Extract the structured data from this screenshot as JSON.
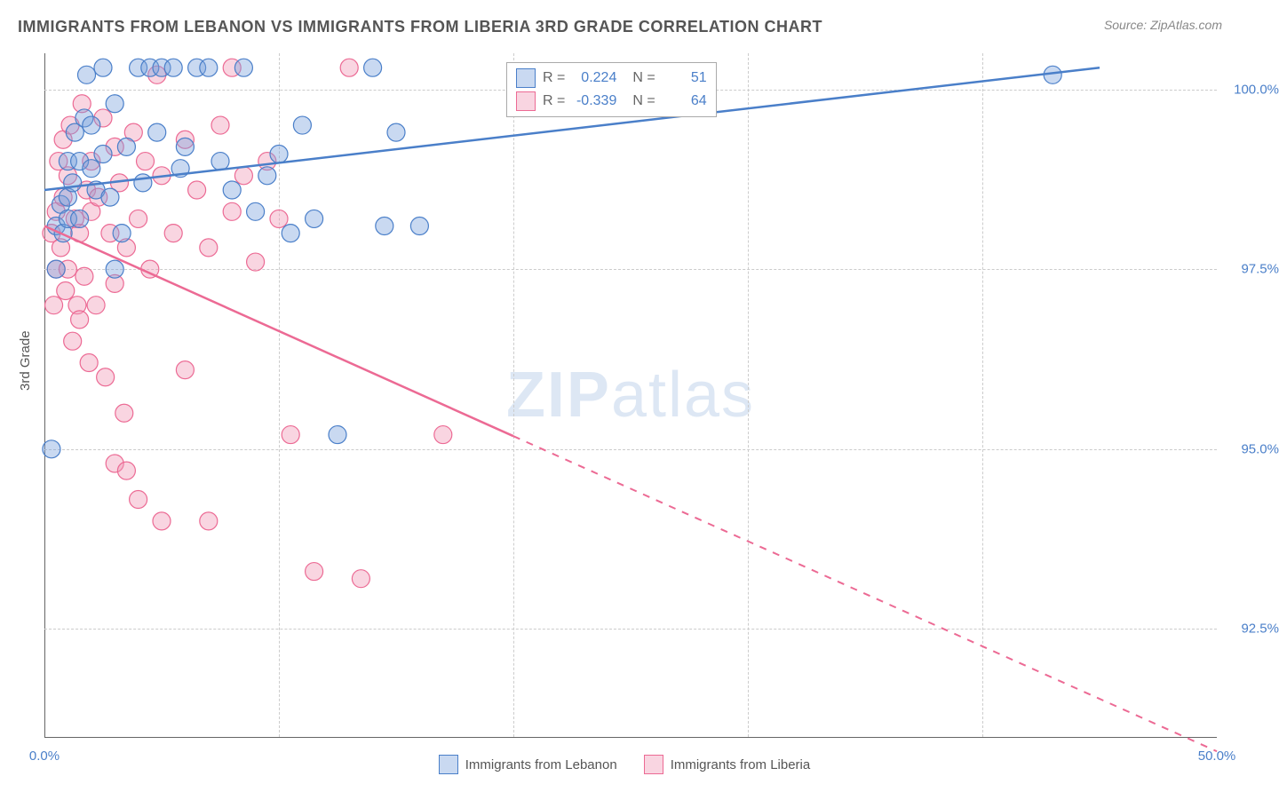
{
  "title": "IMMIGRANTS FROM LEBANON VS IMMIGRANTS FROM LIBERIA 3RD GRADE CORRELATION CHART",
  "source": "Source: ZipAtlas.com",
  "y_axis_label": "3rd Grade",
  "watermark_zip": "ZIP",
  "watermark_atlas": "atlas",
  "chart": {
    "type": "scatter",
    "x_domain": [
      0,
      50
    ],
    "y_domain": [
      91.0,
      100.5
    ],
    "background_color": "#ffffff",
    "grid_color": "#cccccc",
    "axis_color": "#666666",
    "tick_label_color": "#4a7fc9",
    "y_ticks": [
      {
        "value": 92.5,
        "label": "92.5%"
      },
      {
        "value": 95.0,
        "label": "95.0%"
      },
      {
        "value": 97.5,
        "label": "97.5%"
      },
      {
        "value": 100.0,
        "label": "100.0%"
      }
    ],
    "x_ticks": [
      {
        "value": 0.0,
        "label": "0.0%"
      },
      {
        "value": 50.0,
        "label": "50.0%"
      }
    ],
    "x_grid": [
      10,
      20,
      30,
      40
    ],
    "series": [
      {
        "name": "Immigrants from Lebanon",
        "color_fill": "rgba(120,160,220,0.4)",
        "color_stroke": "#4a7fc9",
        "marker_radius": 10,
        "R": "0.224",
        "N": "51",
        "regression": {
          "x1": 0,
          "y1": 98.6,
          "x2": 45,
          "y2": 100.3,
          "dashed_from_x": null
        },
        "points": [
          [
            0.3,
            95.0
          ],
          [
            0.5,
            97.5
          ],
          [
            0.5,
            98.1
          ],
          [
            0.7,
            98.4
          ],
          [
            0.8,
            98.0
          ],
          [
            1.0,
            98.5
          ],
          [
            1.0,
            99.0
          ],
          [
            1.0,
            98.2
          ],
          [
            1.2,
            98.7
          ],
          [
            1.3,
            99.4
          ],
          [
            1.5,
            99.0
          ],
          [
            1.5,
            98.2
          ],
          [
            1.7,
            99.6
          ],
          [
            1.8,
            100.2
          ],
          [
            2.0,
            98.9
          ],
          [
            2.0,
            99.5
          ],
          [
            2.2,
            98.6
          ],
          [
            2.5,
            100.3
          ],
          [
            2.5,
            99.1
          ],
          [
            2.8,
            98.5
          ],
          [
            3.0,
            99.8
          ],
          [
            3.0,
            97.5
          ],
          [
            3.3,
            98.0
          ],
          [
            3.5,
            99.2
          ],
          [
            4.0,
            100.3
          ],
          [
            4.2,
            98.7
          ],
          [
            4.5,
            100.3
          ],
          [
            4.8,
            99.4
          ],
          [
            5.0,
            100.3
          ],
          [
            5.5,
            100.3
          ],
          [
            5.8,
            98.9
          ],
          [
            6.0,
            99.2
          ],
          [
            6.5,
            100.3
          ],
          [
            7.0,
            100.3
          ],
          [
            7.5,
            99.0
          ],
          [
            8.0,
            98.6
          ],
          [
            8.5,
            100.3
          ],
          [
            9.0,
            98.3
          ],
          [
            9.5,
            98.8
          ],
          [
            10.0,
            99.1
          ],
          [
            10.5,
            98.0
          ],
          [
            11.0,
            99.5
          ],
          [
            11.5,
            98.2
          ],
          [
            12.5,
            95.2
          ],
          [
            14.0,
            100.3
          ],
          [
            14.5,
            98.1
          ],
          [
            15.0,
            99.4
          ],
          [
            16.0,
            98.1
          ],
          [
            43.0,
            100.2
          ]
        ]
      },
      {
        "name": "Immigrants from Liberia",
        "color_fill": "rgba(240,150,180,0.4)",
        "color_stroke": "#ec6a94",
        "marker_radius": 10,
        "R": "-0.339",
        "N": "64",
        "regression": {
          "x1": 0,
          "y1": 98.1,
          "x2": 50,
          "y2": 90.8,
          "dashed_from_x": 20
        },
        "points": [
          [
            0.3,
            98.0
          ],
          [
            0.4,
            97.0
          ],
          [
            0.5,
            98.3
          ],
          [
            0.5,
            97.5
          ],
          [
            0.6,
            99.0
          ],
          [
            0.7,
            97.8
          ],
          [
            0.8,
            98.5
          ],
          [
            0.8,
            99.3
          ],
          [
            0.9,
            97.2
          ],
          [
            1.0,
            98.8
          ],
          [
            1.0,
            97.5
          ],
          [
            1.1,
            99.5
          ],
          [
            1.2,
            96.5
          ],
          [
            1.3,
            98.2
          ],
          [
            1.4,
            97.0
          ],
          [
            1.5,
            98.0
          ],
          [
            1.5,
            96.8
          ],
          [
            1.6,
            99.8
          ],
          [
            1.7,
            97.4
          ],
          [
            1.8,
            98.6
          ],
          [
            1.9,
            96.2
          ],
          [
            2.0,
            98.3
          ],
          [
            2.0,
            99.0
          ],
          [
            2.2,
            97.0
          ],
          [
            2.3,
            98.5
          ],
          [
            2.5,
            99.6
          ],
          [
            2.6,
            96.0
          ],
          [
            2.8,
            98.0
          ],
          [
            3.0,
            97.3
          ],
          [
            3.0,
            99.2
          ],
          [
            3.0,
            94.8
          ],
          [
            3.2,
            98.7
          ],
          [
            3.4,
            95.5
          ],
          [
            3.5,
            97.8
          ],
          [
            3.5,
            94.7
          ],
          [
            3.8,
            99.4
          ],
          [
            4.0,
            94.3
          ],
          [
            4.0,
            98.2
          ],
          [
            4.3,
            99.0
          ],
          [
            4.5,
            97.5
          ],
          [
            4.8,
            100.2
          ],
          [
            5.0,
            98.8
          ],
          [
            5.0,
            94.0
          ],
          [
            5.5,
            98.0
          ],
          [
            6.0,
            99.3
          ],
          [
            6.0,
            96.1
          ],
          [
            6.5,
            98.6
          ],
          [
            7.0,
            97.8
          ],
          [
            7.0,
            94.0
          ],
          [
            7.5,
            99.5
          ],
          [
            8.0,
            98.3
          ],
          [
            8.0,
            100.3
          ],
          [
            8.5,
            98.8
          ],
          [
            9.0,
            97.6
          ],
          [
            9.5,
            99.0
          ],
          [
            10.0,
            98.2
          ],
          [
            10.5,
            95.2
          ],
          [
            11.5,
            93.3
          ],
          [
            13.0,
            100.3
          ],
          [
            13.5,
            93.2
          ],
          [
            17.0,
            95.2
          ]
        ]
      }
    ]
  },
  "legend": {
    "r_label": "R  =",
    "n_label": "N  ="
  }
}
